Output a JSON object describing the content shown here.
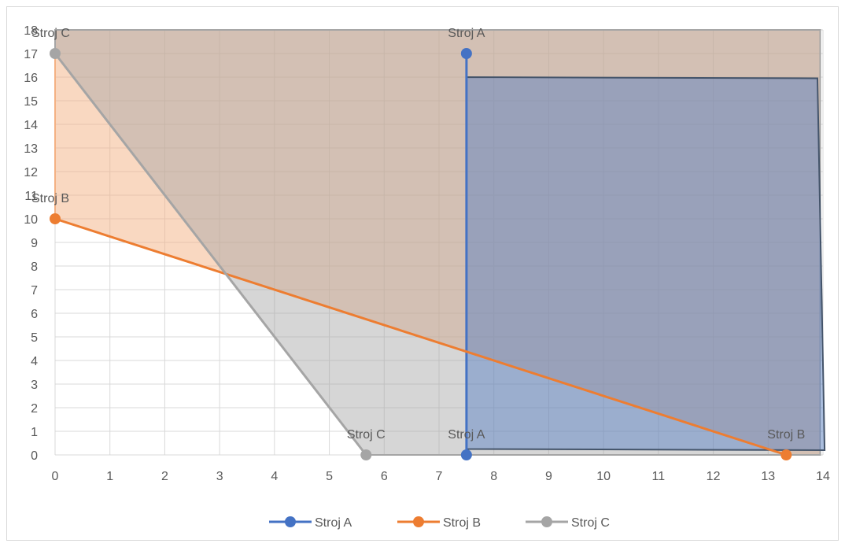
{
  "chart_data": {
    "type": "scatter",
    "xlim": [
      0,
      14
    ],
    "ylim": [
      0,
      18
    ],
    "x_ticks": [
      0,
      1,
      2,
      3,
      4,
      5,
      6,
      7,
      8,
      9,
      10,
      11,
      12,
      13,
      14
    ],
    "y_ticks": [
      0,
      1,
      2,
      3,
      4,
      5,
      6,
      7,
      8,
      9,
      10,
      11,
      12,
      13,
      14,
      15,
      16,
      17,
      18
    ],
    "grid": true,
    "legend_position": "bottom",
    "series": [
      {
        "name": "Stroj A",
        "color": "#4472c4",
        "points": [
          {
            "x": 7.5,
            "y": 17,
            "label": "Stroj A"
          },
          {
            "x": 7.5,
            "y": 0,
            "label": "Stroj A"
          }
        ]
      },
      {
        "name": "Stroj B",
        "color": "#ed7d31",
        "points": [
          {
            "x": 0,
            "y": 10,
            "label": "Stroj B"
          },
          {
            "x": 13.33,
            "y": 0,
            "label": "Stroj B"
          }
        ]
      },
      {
        "name": "Stroj C",
        "color": "#a5a5a5",
        "points": [
          {
            "x": 0,
            "y": 17,
            "label": "Stroj C"
          },
          {
            "x": 5.67,
            "y": 0,
            "label": "Stroj C"
          }
        ]
      }
    ],
    "regions": [
      {
        "name": "Stroj B",
        "fill": "#f4b183",
        "opacity": 0.5,
        "stroke": "#f4b183",
        "polygon": [
          [
            0,
            10
          ],
          [
            0,
            18
          ],
          [
            13.95,
            18
          ],
          [
            13.95,
            0
          ],
          [
            13.33,
            0
          ]
        ]
      },
      {
        "name": "Stroj C",
        "fill": "#a5a5a5",
        "opacity": 0.45,
        "stroke": "#a5a5a5",
        "polygon": [
          [
            0,
            17
          ],
          [
            0,
            18
          ],
          [
            13.95,
            18
          ],
          [
            13.95,
            0
          ],
          [
            5.67,
            0
          ]
        ]
      },
      {
        "name": "Stroj A",
        "fill": "#4472c4",
        "opacity": 0.4,
        "stroke": "#44546a",
        "polygon": [
          [
            7.5,
            16
          ],
          [
            13.9,
            15.95
          ],
          [
            14.03,
            0.2
          ],
          [
            7.5,
            0.25
          ]
        ]
      }
    ]
  }
}
